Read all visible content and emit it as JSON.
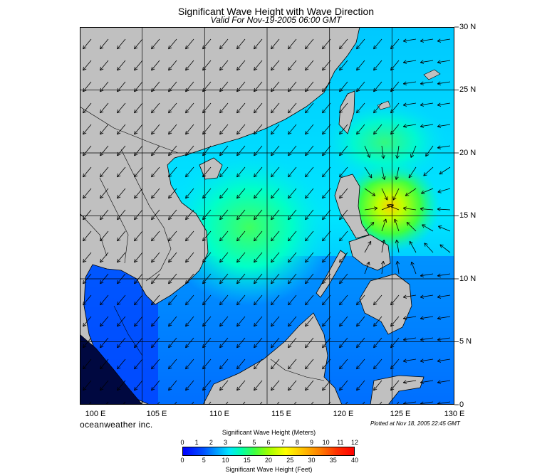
{
  "title": "Significant Wave Height with Wave Direction",
  "subtitle": "Valid For Nov-19-2005 06:00 GMT",
  "lat_labels": [
    "30 N",
    "25 N",
    "20 N",
    "15 N",
    "10 N",
    "5 N",
    "0"
  ],
  "lon_labels": [
    "100 E",
    "105 E",
    "110 E",
    "115 E",
    "120 E",
    "125 E",
    "130 E"
  ],
  "brand": "oceanweather inc.",
  "plotted": "Plotted at Nov 18, 2005 22:45 GMT",
  "legend": {
    "meters_label": "Significant Wave Height (Meters)",
    "feet_label": "Significant Wave Height (Feet)",
    "meters_ticks": [
      "0",
      "1",
      "2",
      "3",
      "4",
      "5",
      "6",
      "7",
      "8",
      "9",
      "10",
      "11",
      "12"
    ],
    "feet_ticks": [
      "0",
      "5",
      "10",
      "15",
      "20",
      "25",
      "30",
      "35",
      "40"
    ]
  },
  "colors": {
    "land": "#c0c0c0",
    "deep": "#0000ff",
    "peak": "#ff0000"
  }
}
